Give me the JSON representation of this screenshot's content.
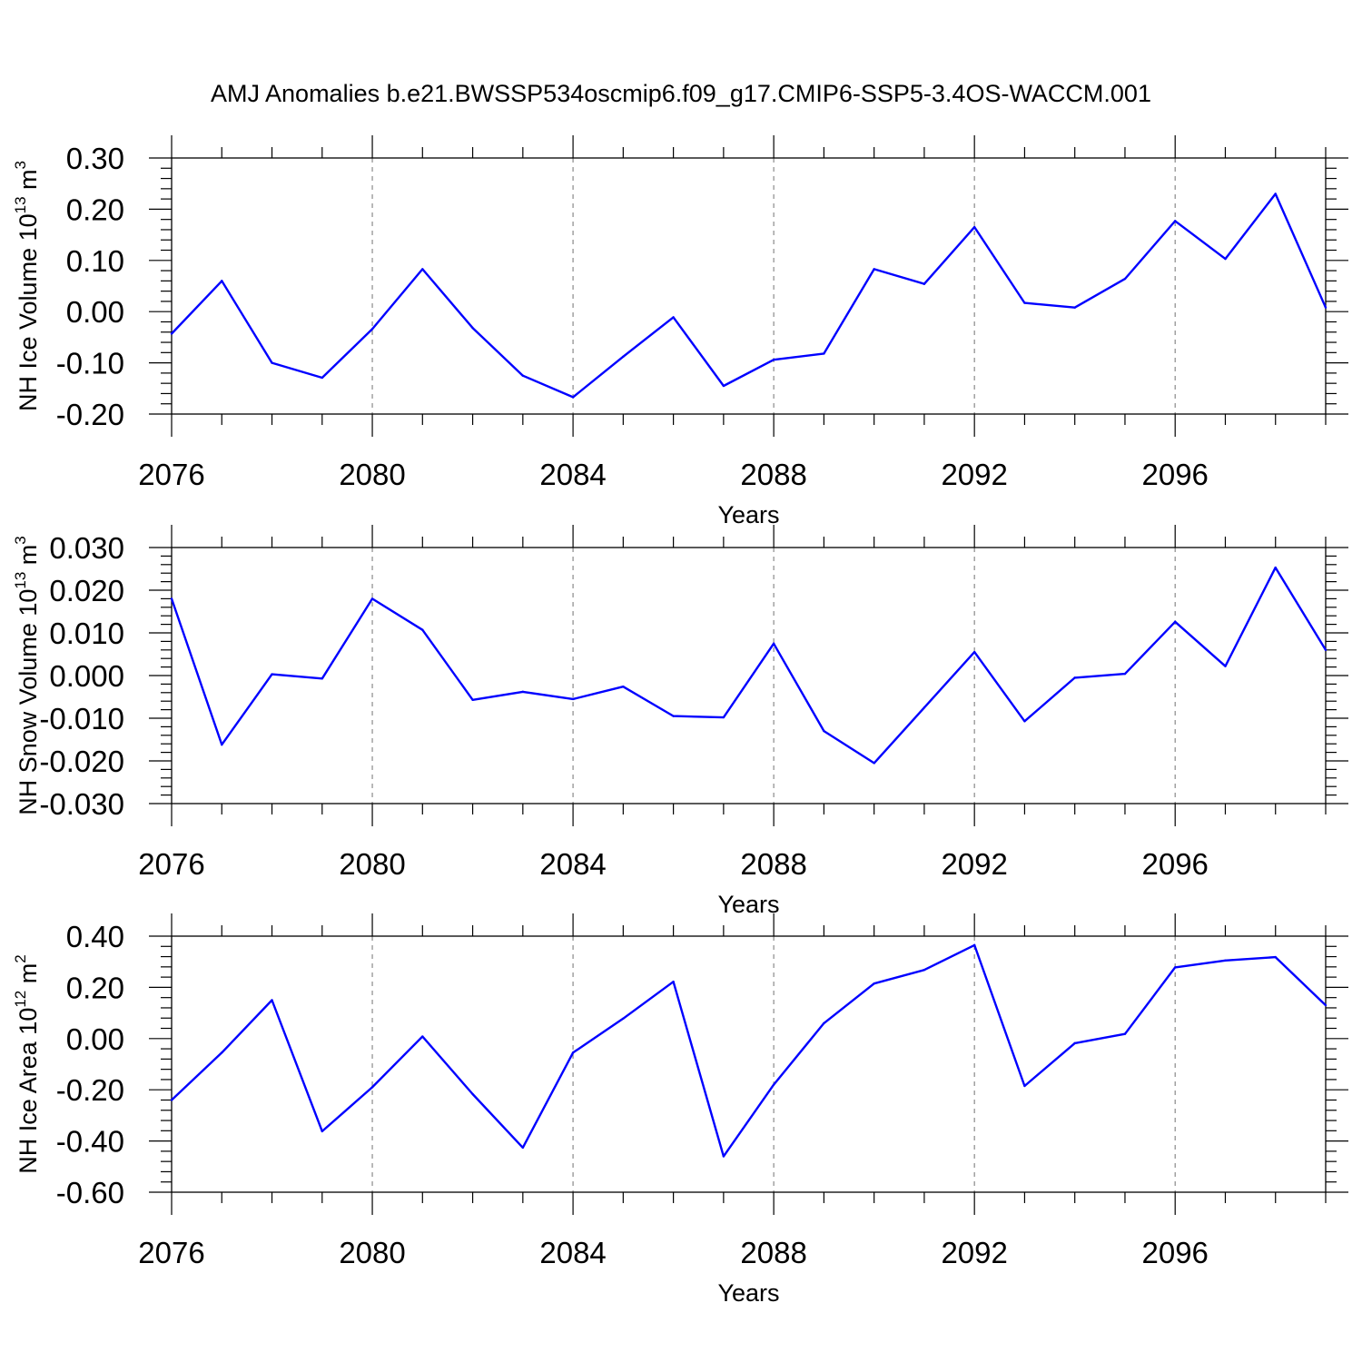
{
  "title": "AMJ Anomalies b.e21.BWSSP534oscmip6.f09_g17.CMIP6-SSP5-3.4OS-WACCM.001",
  "colors": {
    "line": "#0000ff",
    "grid": "#8a8a8a",
    "axis": "#000000"
  },
  "chart_data": [
    {
      "type": "line",
      "title": "AMJ Anomalies b.e21.BWSSP534oscmip6.f09_g17.CMIP6-SSP5-3.4OS-WACCM.001",
      "xlabel": "Years",
      "ylabel": "NH Ice Volume 10",
      "ylabel_sup": "13",
      "ylabel_unit": " m",
      "ylabel_unit_sup": "3",
      "xlim": [
        2076,
        2099
      ],
      "ylim": [
        -0.2,
        0.3
      ],
      "x_ticks": [
        "2076",
        "2080",
        "2084",
        "2088",
        "2092",
        "2096"
      ],
      "y_ticks": [
        "-0.20",
        "-0.10",
        "0.00",
        "0.10",
        "0.20",
        "0.30"
      ],
      "grid": "vertical dashed",
      "x": [
        2076,
        2077,
        2078,
        2079,
        2080,
        2081,
        2082,
        2083,
        2084,
        2085,
        2086,
        2087,
        2088,
        2089,
        2090,
        2091,
        2092,
        2093,
        2094,
        2095,
        2096,
        2097,
        2098,
        2099
      ],
      "series": [
        {
          "name": "NH Ice Volume",
          "values": [
            -0.043,
            0.06,
            -0.1,
            -0.129,
            -0.034,
            0.083,
            -0.032,
            -0.125,
            -0.167,
            -0.088,
            -0.011,
            -0.145,
            -0.094,
            -0.082,
            0.083,
            0.054,
            0.165,
            0.017,
            0.008,
            0.064,
            0.177,
            0.103,
            0.23,
            0.008
          ]
        }
      ]
    },
    {
      "type": "line",
      "xlabel": "Years",
      "ylabel": "NH Snow Volume 10",
      "ylabel_sup": "13",
      "ylabel_unit": " m",
      "ylabel_unit_sup": "3",
      "xlim": [
        2076,
        2099
      ],
      "ylim": [
        -0.03,
        0.03
      ],
      "x_ticks": [
        "2076",
        "2080",
        "2084",
        "2088",
        "2092",
        "2096"
      ],
      "y_ticks": [
        "-0.030",
        "-0.020",
        "-0.010",
        "0.000",
        "0.010",
        "0.020",
        "0.030"
      ],
      "grid": "vertical dashed",
      "x": [
        2076,
        2077,
        2078,
        2079,
        2080,
        2081,
        2082,
        2083,
        2084,
        2085,
        2086,
        2087,
        2088,
        2089,
        2090,
        2091,
        2092,
        2093,
        2094,
        2095,
        2096,
        2097,
        2098,
        2099
      ],
      "series": [
        {
          "name": "NH Snow Volume",
          "values": [
            0.018,
            -0.0162,
            0.0003,
            -0.0007,
            0.018,
            0.0107,
            -0.0057,
            -0.0038,
            -0.0055,
            -0.0026,
            -0.0095,
            -0.0098,
            0.0075,
            -0.013,
            -0.0205,
            -0.0075,
            0.0055,
            -0.0107,
            -0.0005,
            0.0004,
            0.0126,
            0.0022,
            0.0253,
            0.006
          ]
        }
      ]
    },
    {
      "type": "line",
      "xlabel": "Years",
      "ylabel": "NH Ice Area 10",
      "ylabel_sup": "12",
      "ylabel_unit": " m",
      "ylabel_unit_sup": "2",
      "xlim": [
        2076,
        2099
      ],
      "ylim": [
        -0.6,
        0.4
      ],
      "x_ticks": [
        "2076",
        "2080",
        "2084",
        "2088",
        "2092",
        "2096"
      ],
      "y_ticks": [
        "-0.60",
        "-0.40",
        "-0.20",
        "0.00",
        "0.20",
        "0.40"
      ],
      "grid": "vertical dashed",
      "x": [
        2076,
        2077,
        2078,
        2079,
        2080,
        2081,
        2082,
        2083,
        2084,
        2085,
        2086,
        2087,
        2088,
        2089,
        2090,
        2091,
        2092,
        2093,
        2094,
        2095,
        2096,
        2097,
        2098,
        2099
      ],
      "series": [
        {
          "name": "NH Ice Area",
          "values": [
            -0.24,
            -0.055,
            0.15,
            -0.362,
            -0.19,
            0.008,
            -0.217,
            -0.426,
            -0.055,
            0.078,
            0.222,
            -0.46,
            -0.18,
            0.06,
            0.215,
            0.268,
            0.365,
            -0.185,
            -0.018,
            0.018,
            0.278,
            0.305,
            0.318,
            0.13
          ]
        }
      ]
    }
  ]
}
